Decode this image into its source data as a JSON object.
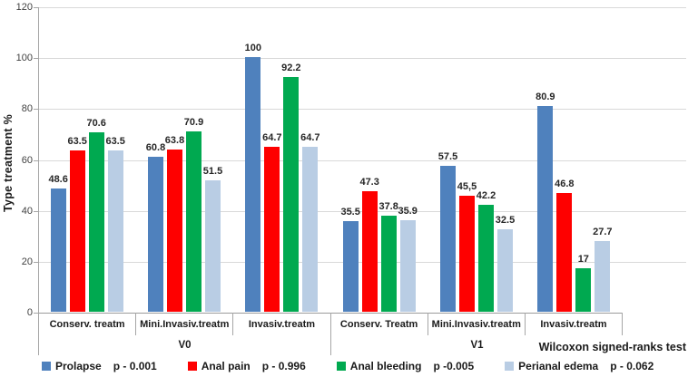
{
  "chart_data": {
    "type": "bar",
    "title": "",
    "xlabel": "",
    "ylabel": "Type treatment %",
    "ylim": [
      0,
      120
    ],
    "yticks": [
      0,
      20,
      40,
      60,
      80,
      100,
      120
    ],
    "grid": "horizontal",
    "legend_position": "bottom",
    "categories": [
      "Conserv. treatm",
      "Mini.Invasiv.treatm",
      "Invasiv.treatm",
      "Conserv. Treatm",
      "Mini.Invasiv.treatm",
      "Invasiv.treatm"
    ],
    "category_groups": [
      {
        "label": "V0",
        "span": 3
      },
      {
        "label": "V1",
        "span": 3
      }
    ],
    "axis_note": "Wilcoxon signed-ranks test",
    "series": [
      {
        "name": "Prolapse",
        "p_value": "p - 0.001",
        "color": "#4f81bd",
        "values": [
          48.6,
          60.8,
          100,
          35.5,
          57.5,
          80.9
        ],
        "labels": [
          "48.6",
          "60.8",
          "100",
          "35.5",
          "57.5",
          "80.9"
        ]
      },
      {
        "name": "Anal pain",
        "p_value": "p - 0.996",
        "color": "#fe0000",
        "values": [
          63.5,
          63.8,
          64.7,
          47.3,
          45.5,
          46.8
        ],
        "labels": [
          "63.5",
          "63.8",
          "64.7",
          "47.3",
          "45,5",
          "46.8"
        ]
      },
      {
        "name": "Anal bleeding",
        "p_value": "p -0.005",
        "color": "#00a950",
        "values": [
          70.6,
          70.9,
          92.2,
          37.8,
          42.2,
          17
        ],
        "labels": [
          "70.6",
          "70.9",
          "92.2",
          "37.8",
          "42.2",
          "17"
        ]
      },
      {
        "name": "Perianal edema",
        "p_value": "p - 0.062",
        "color": "#b9cde4",
        "values": [
          63.5,
          51.5,
          64.7,
          35.9,
          32.5,
          27.7
        ],
        "labels": [
          "63.5",
          "51.5",
          "64.7",
          "35.9",
          "32.5",
          "27.7"
        ]
      }
    ]
  }
}
